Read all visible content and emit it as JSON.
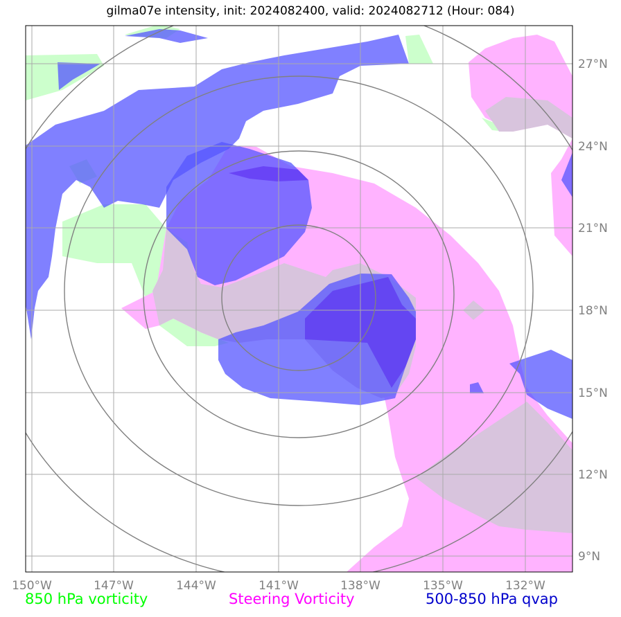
{
  "title": "gilma07e intensity, init: 2024082400, valid: 2024082712 (Hour: 084)",
  "map": {
    "lon_labels": [
      "150°W",
      "147°W",
      "144°W",
      "141°W",
      "138°W",
      "135°W",
      "132°W"
    ],
    "lat_labels": [
      "27°N",
      "24°N",
      "21°N",
      "18°N",
      "15°N",
      "12°N",
      "9°N"
    ]
  },
  "legend": [
    {
      "label": "850 hPa vorticity",
      "color": "#00ff00"
    },
    {
      "label": "Steering Vorticity",
      "color": "#ff00ff"
    },
    {
      "label": "500-850 hPa qvap",
      "color": "#0000cc"
    }
  ],
  "colors": {
    "vort850": "#ccffcc",
    "steering": "#ffb3ff",
    "qvap": "#5555ff",
    "qvap_dark": "#5522ee",
    "overlap": "#d8c4dd",
    "grid": "#aaaaaa",
    "rings": "#808080"
  }
}
